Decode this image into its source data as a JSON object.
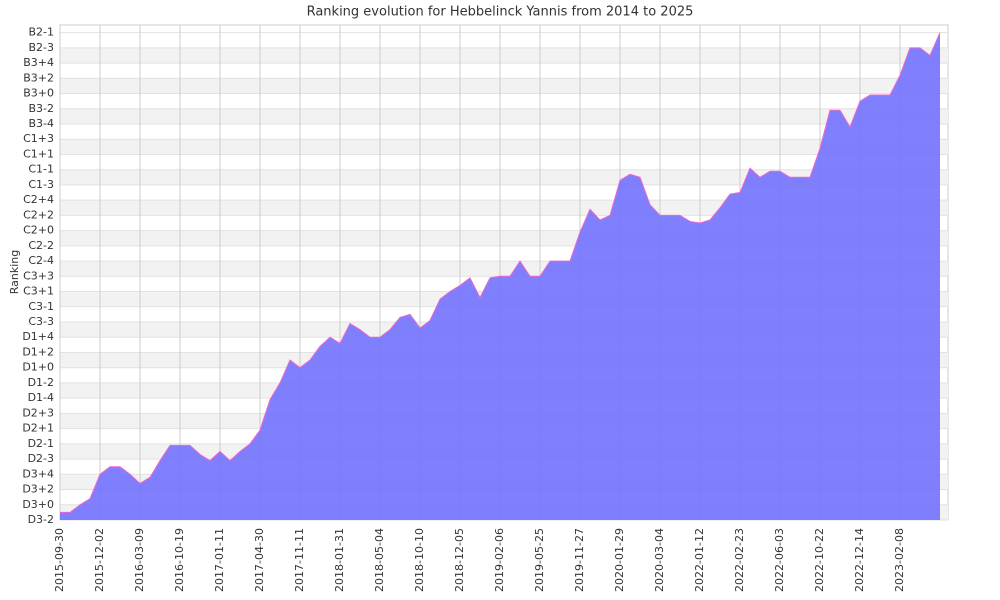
{
  "chart_data": {
    "type": "area",
    "title": "Ranking evolution for Hebbelinck Yannis from 2014 to 2025",
    "y_label": "Ranking",
    "color": "#6e6eff",
    "line_color": "#ee66cc",
    "grid": true,
    "categories": [
      "2015-09-30",
      null,
      null,
      null,
      "2015-12-02",
      null,
      null,
      null,
      "2016-03-09",
      null,
      null,
      null,
      "2016-10-19",
      null,
      null,
      null,
      "2017-01-11",
      null,
      null,
      null,
      "2017-04-30",
      null,
      null,
      null,
      "2017-11-11",
      null,
      null,
      null,
      "2018-01-31",
      null,
      null,
      null,
      "2018-05-04",
      null,
      null,
      null,
      "2018-10-10",
      null,
      null,
      null,
      "2018-12-05",
      null,
      null,
      null,
      "2019-02-06",
      null,
      null,
      null,
      "2019-05-25",
      null,
      null,
      null,
      "2019-11-27",
      null,
      null,
      null,
      "2020-01-29",
      null,
      null,
      null,
      "2020-03-04",
      null,
      null,
      null,
      "2022-01-12",
      null,
      null,
      null,
      "2022-02-23",
      null,
      null,
      null,
      "2022-06-03",
      null,
      null,
      null,
      "2022-10-22",
      null,
      null,
      null,
      "2022-12-14",
      null,
      null,
      null,
      "2023-02-08",
      null,
      null,
      null,
      null
    ],
    "values": [
      0.5,
      0.5,
      1.0,
      1.4,
      3,
      3.5,
      3.5,
      3,
      2.4,
      2.8,
      3.9,
      4.9,
      4.9,
      4.9,
      4.3,
      3.9,
      4.5,
      3.9,
      4.5,
      5,
      5.9,
      7.9,
      9,
      10.5,
      10,
      10.5,
      11.4,
      12,
      11.6,
      12.9,
      12.5,
      12,
      12,
      12.5,
      13.3,
      13.5,
      12.6,
      13.1,
      14.5,
      15,
      15.4,
      15.9,
      14.6,
      15.9,
      16,
      16,
      17,
      16,
      16,
      17,
      17,
      17,
      18.9,
      20.4,
      19.7,
      20,
      22.3,
      22.7,
      22.5,
      20.7,
      20,
      20,
      20,
      19.6,
      19.5,
      19.7,
      20.5,
      21.4,
      21.5,
      23.1,
      22.5,
      22.9,
      22.9,
      22.5,
      22.5,
      22.5,
      24.4,
      26.9,
      26.9,
      25.8,
      27.5,
      27.9,
      27.9,
      27.9,
      29.2,
      31,
      31,
      30.5,
      32
    ],
    "ylim": [
      0,
      32.5
    ],
    "yticks": [
      {
        "value": 0,
        "label": "D3-2"
      },
      {
        "value": 1,
        "label": "D3+0"
      },
      {
        "value": 2,
        "label": "D3+2"
      },
      {
        "value": 3,
        "label": "D3+4"
      },
      {
        "value": 4,
        "label": "D2-3"
      },
      {
        "value": 5,
        "label": "D2-1"
      },
      {
        "value": 6,
        "label": "D2+1"
      },
      {
        "value": 7,
        "label": "D2+3"
      },
      {
        "value": 8,
        "label": "D1-4"
      },
      {
        "value": 9,
        "label": "D1-2"
      },
      {
        "value": 10,
        "label": "D1+0"
      },
      {
        "value": 11,
        "label": "D1+2"
      },
      {
        "value": 12,
        "label": "D1+4"
      },
      {
        "value": 13,
        "label": "C3-3"
      },
      {
        "value": 14,
        "label": "C3-1"
      },
      {
        "value": 15,
        "label": "C3+1"
      },
      {
        "value": 16,
        "label": "C3+3"
      },
      {
        "value": 17,
        "label": "C2-4"
      },
      {
        "value": 18,
        "label": "C2-2"
      },
      {
        "value": 19,
        "label": "C2+0"
      },
      {
        "value": 20,
        "label": "C2+2"
      },
      {
        "value": 21,
        "label": "C2+4"
      },
      {
        "value": 22,
        "label": "C1-3"
      },
      {
        "value": 23,
        "label": "C1-1"
      },
      {
        "value": 24,
        "label": "C1+1"
      },
      {
        "value": 25,
        "label": "C1+3"
      },
      {
        "value": 26,
        "label": "B3-4"
      },
      {
        "value": 27,
        "label": "B3-2"
      },
      {
        "value": 28,
        "label": "B3+0"
      },
      {
        "value": 29,
        "label": "B3+2"
      },
      {
        "value": 30,
        "label": "B3+4"
      },
      {
        "value": 31,
        "label": "B2-3"
      },
      {
        "value": 32,
        "label": "B2-1"
      }
    ]
  }
}
